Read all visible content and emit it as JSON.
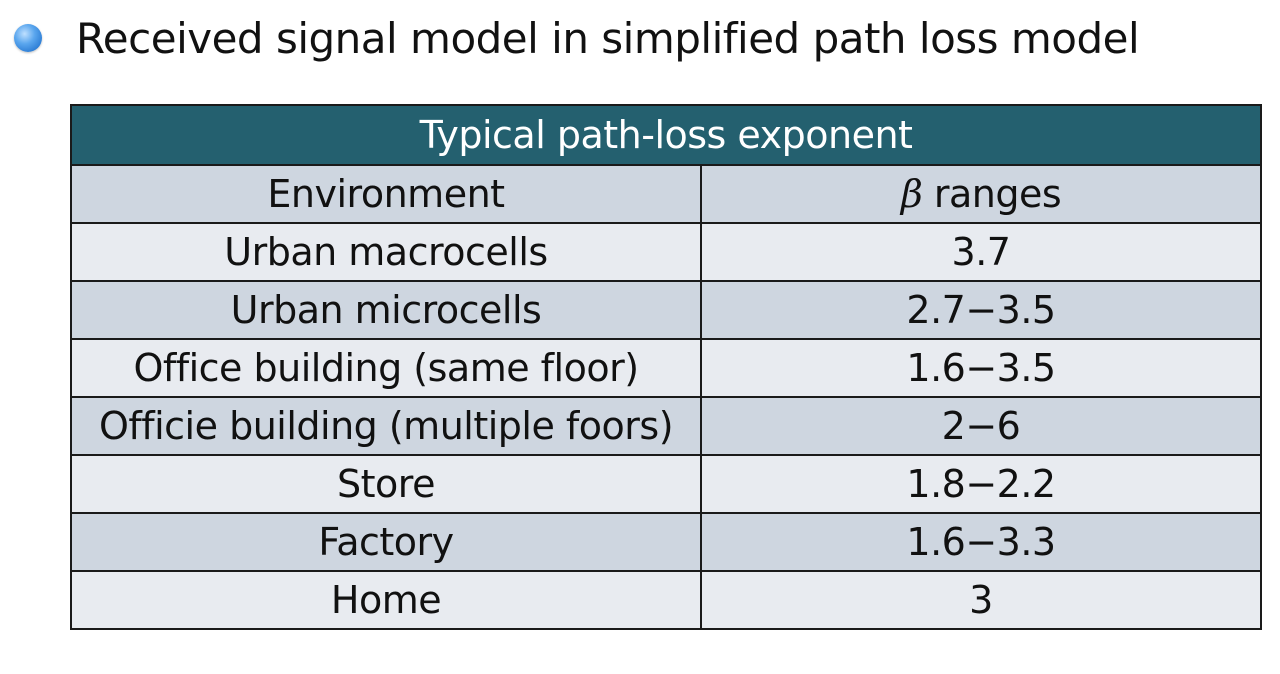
{
  "heading": {
    "text": "Received signal model in simplified path loss model"
  },
  "table": {
    "title": "Typical path-loss exponent",
    "headers": {
      "environment": "Environment",
      "beta_symbol": "β",
      "ranges": " ranges"
    },
    "rows": [
      {
        "environment": "Urban macrocells",
        "range": "3.7"
      },
      {
        "environment": "Urban microcells",
        "range": "2.7−3.5"
      },
      {
        "environment": "Office building (same floor)",
        "range": "1.6−3.5"
      },
      {
        "environment": "Officie building (multiple foors)",
        "range": "2−6"
      },
      {
        "environment": "Store",
        "range": "1.8−2.2"
      },
      {
        "environment": "Factory",
        "range": "1.6−3.3"
      },
      {
        "environment": "Home",
        "range": "3"
      }
    ]
  },
  "colors": {
    "title_bg": "#24606f",
    "row_dark": "#ced6e0",
    "row_light": "#e8ebf0",
    "bullet": "#2f7fd6"
  }
}
